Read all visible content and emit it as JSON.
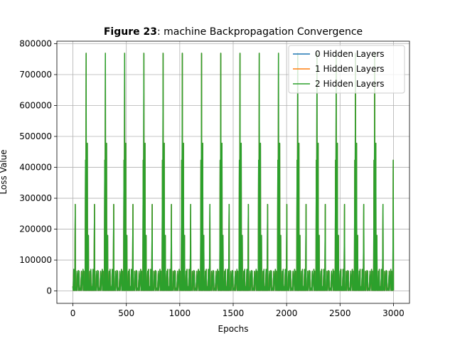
{
  "chart_data": {
    "type": "line",
    "title_prefix": "Figure 23",
    "title_rest": ": machine Backpropagation Convergence",
    "xlabel": "Epochs",
    "ylabel": "Loss Value",
    "xlim": [
      -150,
      3150
    ],
    "ylim": [
      -40000,
      808000
    ],
    "xticks": [
      0,
      500,
      1000,
      1500,
      2000,
      2500,
      3000
    ],
    "xtick_labels": [
      "0",
      "500",
      "1000",
      "1500",
      "2000",
      "2500",
      "3000"
    ],
    "yticks": [
      0,
      100000,
      200000,
      300000,
      400000,
      500000,
      600000,
      700000,
      800000
    ],
    "ytick_labels": [
      "0",
      "100000",
      "200000",
      "300000",
      "400000",
      "500000",
      "600000",
      "700000",
      "800000"
    ],
    "grid": true,
    "legend_position": "upper right",
    "cycle_period": 180,
    "base_cycle_offsets": [
      0,
      8,
      15,
      22,
      32,
      38,
      52,
      58,
      70,
      80,
      95,
      103,
      112,
      118,
      124,
      130,
      135,
      145,
      152,
      160,
      168,
      175
    ],
    "base_cycle_values": [
      15000,
      70000,
      30000,
      280000,
      12000,
      64000,
      66000,
      64000,
      10000,
      64000,
      70000,
      64000,
      12000,
      423000,
      769000,
      68000,
      478000,
      180000,
      12000,
      64000,
      70000,
      8000
    ],
    "x_end": 3000,
    "series": [
      {
        "name": "0 Hidden Layers",
        "color": "#1f77b4"
      },
      {
        "name": "1 Hidden Layers",
        "color": "#ff7f0e"
      },
      {
        "name": "2 Hidden Layers",
        "color": "#2ca02c"
      }
    ]
  }
}
